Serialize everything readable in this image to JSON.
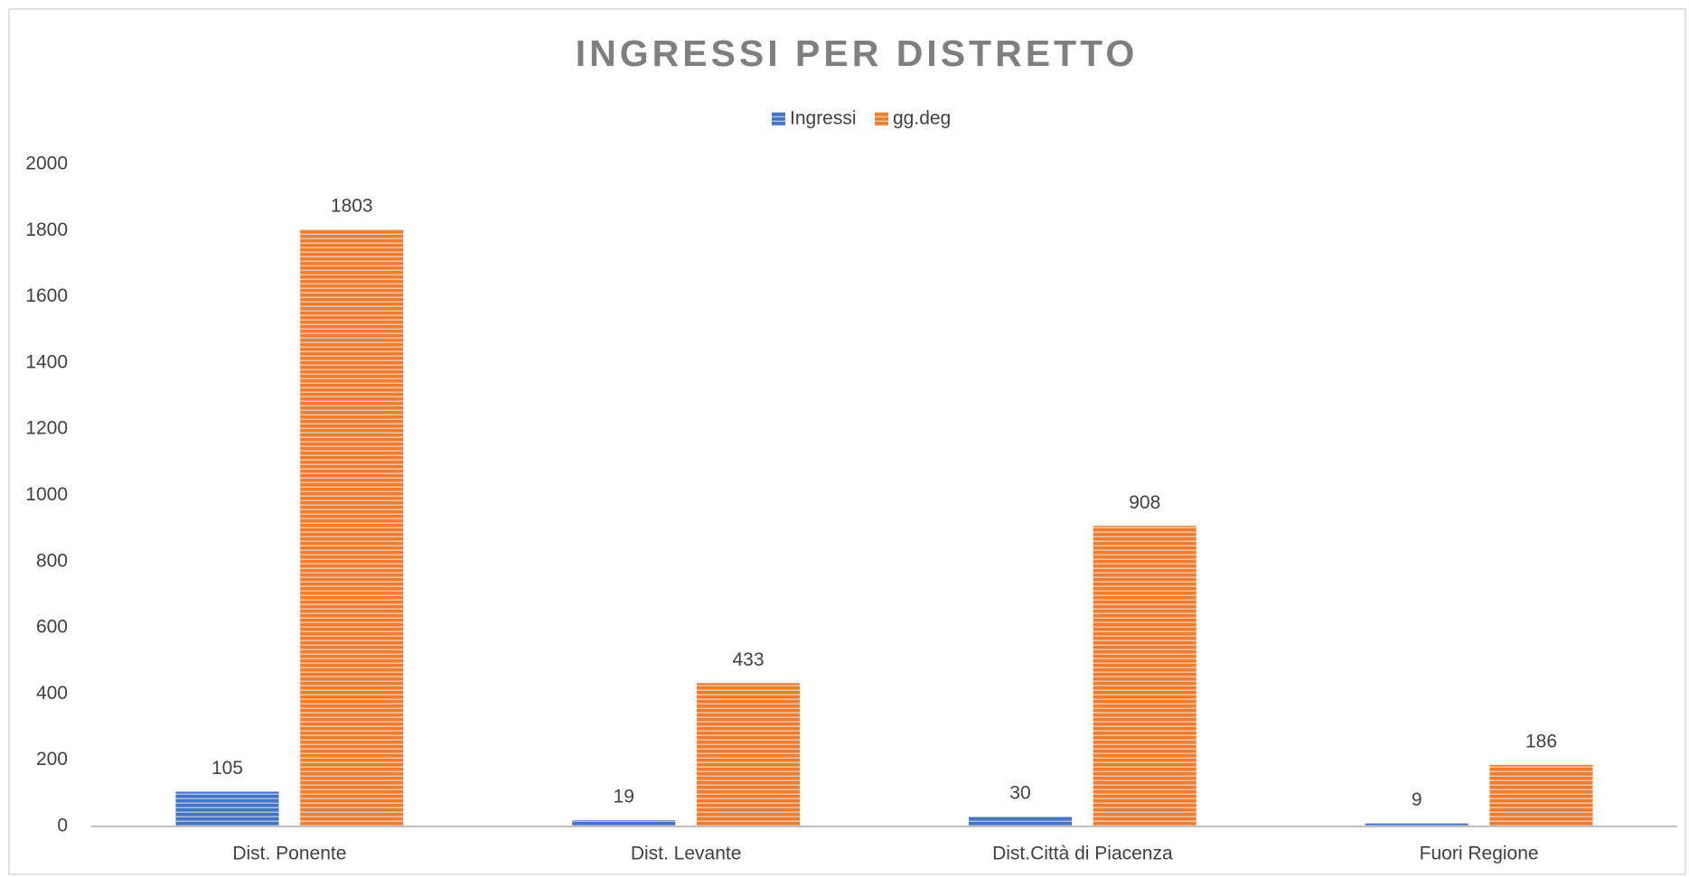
{
  "chart_data": {
    "type": "bar",
    "title": "INGRESSI PER DISTRETTO",
    "categories": [
      "Dist. Ponente",
      "Dist. Levante",
      "Dist.Città di Piacenza",
      "Fuori Regione"
    ],
    "series": [
      {
        "name": "Ingressi",
        "color": "#4472c4",
        "values": [
          105,
          19,
          30,
          9
        ]
      },
      {
        "name": "gg.deg",
        "color": "#ed7d31",
        "values": [
          1803,
          433,
          908,
          186
        ]
      }
    ],
    "ylim": [
      0,
      2000
    ],
    "yticks": [
      0,
      200,
      400,
      600,
      800,
      1000,
      1200,
      1400,
      1600,
      1800,
      2000
    ],
    "grid": false,
    "legend": "top"
  }
}
